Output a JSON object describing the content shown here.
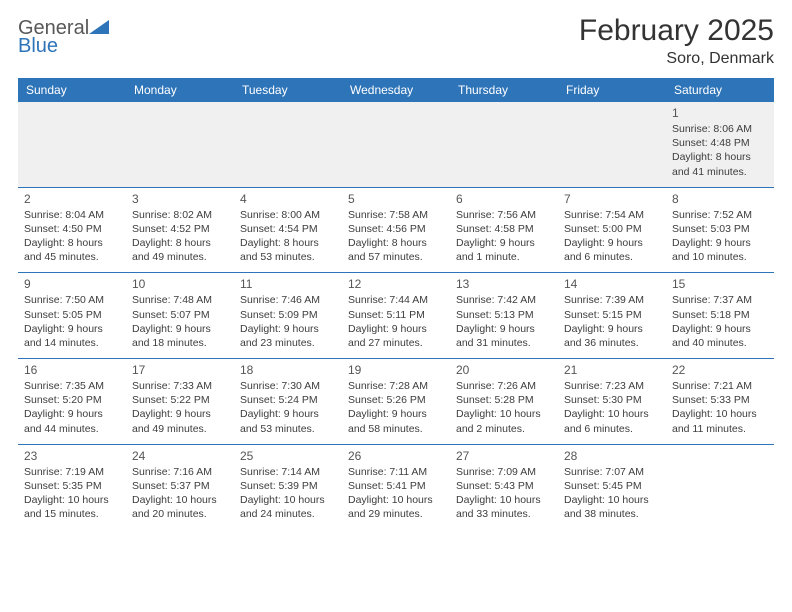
{
  "logo": {
    "word1": "General",
    "word2": "Blue"
  },
  "title": "February 2025",
  "location": "Soro, Denmark",
  "colors": {
    "accent": "#2e74b8",
    "headerText": "#ffffff",
    "bg": "#ffffff",
    "altRow": "#f0f0f0",
    "text": "#333333"
  },
  "dayHeaders": [
    "Sunday",
    "Monday",
    "Tuesday",
    "Wednesday",
    "Thursday",
    "Friday",
    "Saturday"
  ],
  "weeks": [
    [
      null,
      null,
      null,
      null,
      null,
      null,
      {
        "n": "1",
        "sr": "Sunrise: 8:06 AM",
        "ss": "Sunset: 4:48 PM",
        "dl1": "Daylight: 8 hours",
        "dl2": "and 41 minutes."
      }
    ],
    [
      {
        "n": "2",
        "sr": "Sunrise: 8:04 AM",
        "ss": "Sunset: 4:50 PM",
        "dl1": "Daylight: 8 hours",
        "dl2": "and 45 minutes."
      },
      {
        "n": "3",
        "sr": "Sunrise: 8:02 AM",
        "ss": "Sunset: 4:52 PM",
        "dl1": "Daylight: 8 hours",
        "dl2": "and 49 minutes."
      },
      {
        "n": "4",
        "sr": "Sunrise: 8:00 AM",
        "ss": "Sunset: 4:54 PM",
        "dl1": "Daylight: 8 hours",
        "dl2": "and 53 minutes."
      },
      {
        "n": "5",
        "sr": "Sunrise: 7:58 AM",
        "ss": "Sunset: 4:56 PM",
        "dl1": "Daylight: 8 hours",
        "dl2": "and 57 minutes."
      },
      {
        "n": "6",
        "sr": "Sunrise: 7:56 AM",
        "ss": "Sunset: 4:58 PM",
        "dl1": "Daylight: 9 hours",
        "dl2": "and 1 minute."
      },
      {
        "n": "7",
        "sr": "Sunrise: 7:54 AM",
        "ss": "Sunset: 5:00 PM",
        "dl1": "Daylight: 9 hours",
        "dl2": "and 6 minutes."
      },
      {
        "n": "8",
        "sr": "Sunrise: 7:52 AM",
        "ss": "Sunset: 5:03 PM",
        "dl1": "Daylight: 9 hours",
        "dl2": "and 10 minutes."
      }
    ],
    [
      {
        "n": "9",
        "sr": "Sunrise: 7:50 AM",
        "ss": "Sunset: 5:05 PM",
        "dl1": "Daylight: 9 hours",
        "dl2": "and 14 minutes."
      },
      {
        "n": "10",
        "sr": "Sunrise: 7:48 AM",
        "ss": "Sunset: 5:07 PM",
        "dl1": "Daylight: 9 hours",
        "dl2": "and 18 minutes."
      },
      {
        "n": "11",
        "sr": "Sunrise: 7:46 AM",
        "ss": "Sunset: 5:09 PM",
        "dl1": "Daylight: 9 hours",
        "dl2": "and 23 minutes."
      },
      {
        "n": "12",
        "sr": "Sunrise: 7:44 AM",
        "ss": "Sunset: 5:11 PM",
        "dl1": "Daylight: 9 hours",
        "dl2": "and 27 minutes."
      },
      {
        "n": "13",
        "sr": "Sunrise: 7:42 AM",
        "ss": "Sunset: 5:13 PM",
        "dl1": "Daylight: 9 hours",
        "dl2": "and 31 minutes."
      },
      {
        "n": "14",
        "sr": "Sunrise: 7:39 AM",
        "ss": "Sunset: 5:15 PM",
        "dl1": "Daylight: 9 hours",
        "dl2": "and 36 minutes."
      },
      {
        "n": "15",
        "sr": "Sunrise: 7:37 AM",
        "ss": "Sunset: 5:18 PM",
        "dl1": "Daylight: 9 hours",
        "dl2": "and 40 minutes."
      }
    ],
    [
      {
        "n": "16",
        "sr": "Sunrise: 7:35 AM",
        "ss": "Sunset: 5:20 PM",
        "dl1": "Daylight: 9 hours",
        "dl2": "and 44 minutes."
      },
      {
        "n": "17",
        "sr": "Sunrise: 7:33 AM",
        "ss": "Sunset: 5:22 PM",
        "dl1": "Daylight: 9 hours",
        "dl2": "and 49 minutes."
      },
      {
        "n": "18",
        "sr": "Sunrise: 7:30 AM",
        "ss": "Sunset: 5:24 PM",
        "dl1": "Daylight: 9 hours",
        "dl2": "and 53 minutes."
      },
      {
        "n": "19",
        "sr": "Sunrise: 7:28 AM",
        "ss": "Sunset: 5:26 PM",
        "dl1": "Daylight: 9 hours",
        "dl2": "and 58 minutes."
      },
      {
        "n": "20",
        "sr": "Sunrise: 7:26 AM",
        "ss": "Sunset: 5:28 PM",
        "dl1": "Daylight: 10 hours",
        "dl2": "and 2 minutes."
      },
      {
        "n": "21",
        "sr": "Sunrise: 7:23 AM",
        "ss": "Sunset: 5:30 PM",
        "dl1": "Daylight: 10 hours",
        "dl2": "and 6 minutes."
      },
      {
        "n": "22",
        "sr": "Sunrise: 7:21 AM",
        "ss": "Sunset: 5:33 PM",
        "dl1": "Daylight: 10 hours",
        "dl2": "and 11 minutes."
      }
    ],
    [
      {
        "n": "23",
        "sr": "Sunrise: 7:19 AM",
        "ss": "Sunset: 5:35 PM",
        "dl1": "Daylight: 10 hours",
        "dl2": "and 15 minutes."
      },
      {
        "n": "24",
        "sr": "Sunrise: 7:16 AM",
        "ss": "Sunset: 5:37 PM",
        "dl1": "Daylight: 10 hours",
        "dl2": "and 20 minutes."
      },
      {
        "n": "25",
        "sr": "Sunrise: 7:14 AM",
        "ss": "Sunset: 5:39 PM",
        "dl1": "Daylight: 10 hours",
        "dl2": "and 24 minutes."
      },
      {
        "n": "26",
        "sr": "Sunrise: 7:11 AM",
        "ss": "Sunset: 5:41 PM",
        "dl1": "Daylight: 10 hours",
        "dl2": "and 29 minutes."
      },
      {
        "n": "27",
        "sr": "Sunrise: 7:09 AM",
        "ss": "Sunset: 5:43 PM",
        "dl1": "Daylight: 10 hours",
        "dl2": "and 33 minutes."
      },
      {
        "n": "28",
        "sr": "Sunrise: 7:07 AM",
        "ss": "Sunset: 5:45 PM",
        "dl1": "Daylight: 10 hours",
        "dl2": "and 38 minutes."
      },
      null
    ]
  ]
}
